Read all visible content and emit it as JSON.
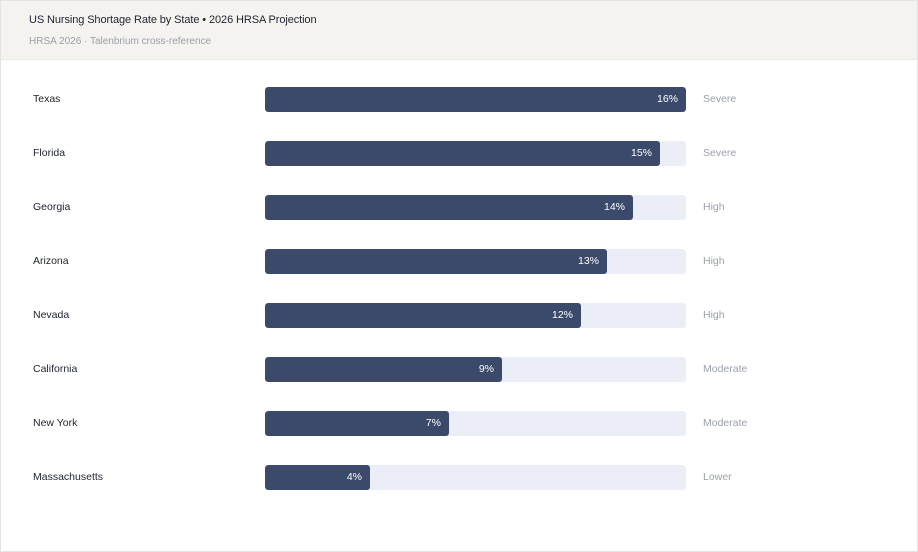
{
  "header": {
    "title": "US Nursing Shortage Rate by State • 2026 HRSA Projection",
    "subtitle": "HRSA 2026 · Talenbrium cross-reference"
  },
  "colors": {
    "bar": "#3b4a6b",
    "track": "#ebeef6",
    "header_bg": "#f4f3ef"
  },
  "chart_data": {
    "type": "bar",
    "orientation": "horizontal",
    "title": "US Nursing Shortage Rate by State • 2026 HRSA Projection",
    "subtitle": "HRSA 2026 · Talenbrium cross-reference",
    "xlim": [
      0,
      16
    ],
    "unit": "%",
    "categories": [
      "Texas",
      "Florida",
      "Georgia",
      "Arizona",
      "Nevada",
      "California",
      "New York",
      "Massachusetts"
    ],
    "values": [
      16,
      15,
      14,
      13,
      12,
      9,
      7,
      4
    ],
    "value_labels": [
      "16%",
      "15%",
      "14%",
      "13%",
      "12%",
      "9%",
      "7%",
      "4%"
    ],
    "severity": [
      "Severe",
      "Severe",
      "High",
      "High",
      "High",
      "Moderate",
      "Moderate",
      "Lower"
    ]
  }
}
